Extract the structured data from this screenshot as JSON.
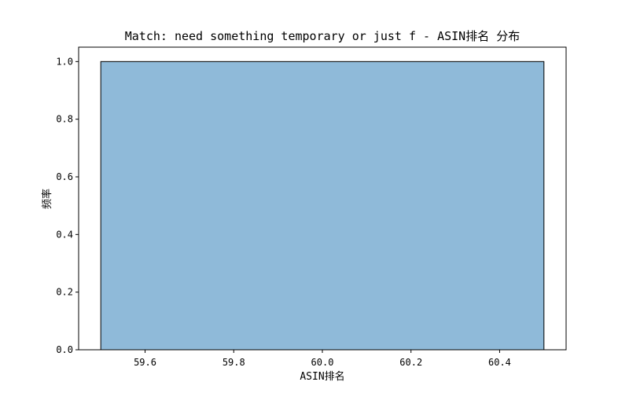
{
  "chart_data": {
    "type": "bar",
    "title": "Match: need something temporary or just f - ASIN排名 分布",
    "xlabel": "ASIN排名",
    "ylabel": "频率",
    "xlim": [
      59.45,
      60.55
    ],
    "ylim": [
      0,
      1.05
    ],
    "xticks": [
      59.6,
      59.8,
      60.0,
      60.2,
      60.4
    ],
    "xtick_labels": [
      "59.6",
      "59.8",
      "60.0",
      "60.2",
      "60.4"
    ],
    "yticks": [
      0.0,
      0.2,
      0.4,
      0.6,
      0.8,
      1.0
    ],
    "ytick_labels": [
      "0.0",
      "0.2",
      "0.4",
      "0.6",
      "0.8",
      "1.0"
    ],
    "bins": [
      {
        "x0": 59.5,
        "x1": 60.5,
        "value": 1.0
      }
    ],
    "bar_color": "#8fbad9",
    "edge_color": "#000000",
    "grid": false,
    "legend": false
  }
}
